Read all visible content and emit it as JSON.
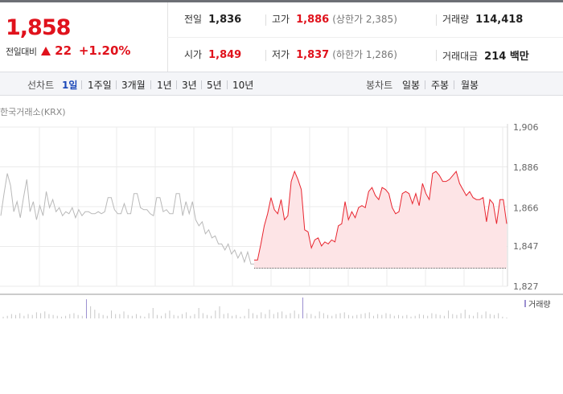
{
  "summary": {
    "price": "1,858",
    "change_label": "전일대비",
    "change_value": "22",
    "change_pct": "+1.20%"
  },
  "stats": {
    "prev_label": "전일",
    "prev_value": "1,836",
    "high_label": "고가",
    "high_value": "1,886",
    "upper_limit": "(상한가 2,385)",
    "volume_label": "거래량",
    "volume_value": "114,418",
    "open_label": "시가",
    "open_value": "1,849",
    "low_label": "저가",
    "low_value": "1,837",
    "lower_limit": "(하한가 1,286)",
    "amount_label": "거래대금",
    "amount_value": "214 백만"
  },
  "tabs": {
    "line_label": "선차트",
    "line_tabs": [
      "1일",
      "1주일",
      "3개월",
      "1년",
      "3년",
      "5년",
      "10년"
    ],
    "active_line_tab": 0,
    "candle_label": "봉차트",
    "candle_tabs": [
      "일봉",
      "주봉",
      "월봉"
    ]
  },
  "source": "한국거래소(KRX)",
  "colors": {
    "up": "#e0121c",
    "today_line": "#e8242e",
    "today_fill": "#fde4e6",
    "prev_line": "#b9b9b9",
    "volume": "#9b8fd0"
  },
  "chart_data": {
    "type": "line",
    "ylim": [
      1827,
      1906
    ],
    "y_ticks": [
      1906,
      1886,
      1866,
      1847,
      1827
    ],
    "baseline": 1836,
    "series": [
      {
        "values": [
          1862,
          1873,
          1883,
          1877,
          1864,
          1869,
          1861,
          1871,
          1880,
          1864,
          1869,
          1860,
          1867,
          1862,
          1874,
          1866,
          1870,
          1864,
          1866,
          1862,
          1864,
          1863,
          1866,
          1861,
          1865,
          1862,
          1864,
          1864,
          1863,
          1863,
          1864,
          1863,
          1864,
          1871,
          1871,
          1865,
          1863,
          1863,
          1868,
          1863,
          1863,
          1873,
          1873,
          1866,
          1865,
          1865,
          1863,
          1862,
          1871,
          1871,
          1864,
          1865,
          1863,
          1863,
          1873,
          1873,
          1862,
          1869,
          1863,
          1869,
          1860,
          1857,
          1859,
          1853,
          1855,
          1851,
          1852,
          1848,
          1848,
          1845,
          1848,
          1843,
          1845,
          1841,
          1844,
          1839,
          1844,
          1838,
          1838
        ]
      },
      {
        "values": [
          1840,
          1840,
          1848,
          1857,
          1863,
          1871,
          1865,
          1863,
          1870,
          1860,
          1862,
          1879,
          1884,
          1880,
          1875,
          1855,
          1854,
          1846,
          1850,
          1851,
          1847,
          1849,
          1848,
          1850,
          1849,
          1857,
          1858,
          1869,
          1860,
          1864,
          1861,
          1866,
          1867,
          1866,
          1874,
          1876,
          1872,
          1870,
          1876,
          1875,
          1873,
          1866,
          1863,
          1864,
          1873,
          1874,
          1873,
          1868,
          1873,
          1867,
          1878,
          1873,
          1870,
          1883,
          1884,
          1882,
          1879,
          1879,
          1880,
          1882,
          1884,
          1878,
          1875,
          1872,
          1874,
          1871,
          1870,
          1870,
          1871,
          1859,
          1870,
          1868,
          1858,
          1870,
          1870,
          1858
        ]
      }
    ],
    "volume": [
      2,
      3,
      5,
      4,
      6,
      3,
      5,
      4,
      7,
      6,
      8,
      5,
      4,
      3,
      2,
      3,
      5,
      6,
      4,
      3,
      22,
      14,
      10,
      6,
      4,
      3,
      9,
      5,
      5,
      8,
      4,
      3,
      5,
      3,
      2,
      6,
      12,
      4,
      3,
      6,
      9,
      4,
      3,
      5,
      7,
      3,
      5,
      12,
      6,
      4,
      3,
      9,
      14,
      5,
      6,
      3,
      4,
      2,
      3,
      11,
      6,
      4,
      7,
      5,
      10,
      5,
      7,
      8,
      4,
      6,
      9,
      5,
      24,
      6,
      5,
      3,
      8,
      6,
      4,
      3,
      5,
      6,
      7,
      4,
      3,
      4,
      5,
      6,
      7,
      3,
      5,
      4,
      6,
      5,
      3,
      4,
      3,
      4,
      2,
      3,
      5,
      4,
      3,
      6,
      5,
      4,
      3,
      9,
      5,
      4,
      6,
      10,
      4,
      3,
      7,
      4,
      8,
      5,
      4,
      6,
      2,
      1
    ],
    "volume_label": "거래량"
  }
}
